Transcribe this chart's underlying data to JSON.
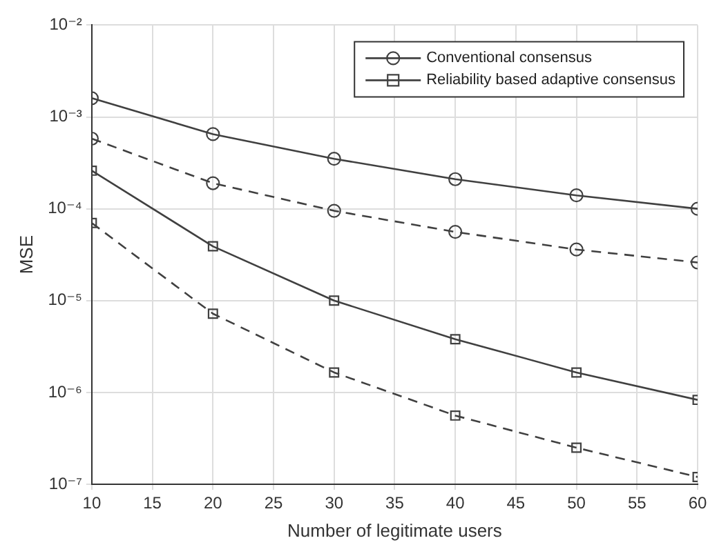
{
  "chart_data": {
    "type": "line",
    "xlabel": "Number of legitimate users",
    "ylabel": "MSE",
    "x": [
      10,
      20,
      30,
      40,
      50,
      60
    ],
    "series": [
      {
        "name": "Conventional consensus",
        "color": "#404040",
        "marker": "circle",
        "line_style": "solid",
        "values": [
          0.0016,
          0.00065,
          0.00035,
          0.00021,
          0.00014,
          0.0001
        ]
      },
      {
        "color": "#404040",
        "marker": "circle",
        "line_style": "dashed",
        "values": [
          0.00058,
          0.00019,
          9.5e-05,
          5.6e-05,
          3.6e-05,
          2.6e-05
        ]
      },
      {
        "name": "Reliability based adaptive consensus",
        "color": "#404040",
        "marker": "square",
        "line_style": "solid",
        "values": [
          0.00026,
          3.9e-05,
          1e-05,
          3.8e-06,
          1.65e-06,
          8.3e-07
        ]
      },
      {
        "color": "#404040",
        "marker": "square",
        "line_style": "dashed",
        "values": [
          7e-05,
          7.2e-06,
          1.65e-06,
          5.6e-07,
          2.5e-07,
          1.2e-07
        ]
      }
    ],
    "xlim": [
      10,
      60
    ],
    "xticks": [
      10,
      15,
      20,
      25,
      30,
      35,
      40,
      45,
      50,
      55,
      60
    ],
    "ylim": [
      1e-07,
      0.01
    ],
    "yticks": [
      {
        "value": 1e-07,
        "label": "10⁻⁷"
      },
      {
        "value": 1e-06,
        "label": "10⁻⁶"
      },
      {
        "value": 1e-05,
        "label": "10⁻⁵"
      },
      {
        "value": 0.0001,
        "label": "10⁻⁴"
      },
      {
        "value": 0.001,
        "label": "10⁻³"
      },
      {
        "value": 0.01,
        "label": "10⁻²"
      }
    ],
    "log": "y",
    "grid": true,
    "legend": "top right"
  }
}
